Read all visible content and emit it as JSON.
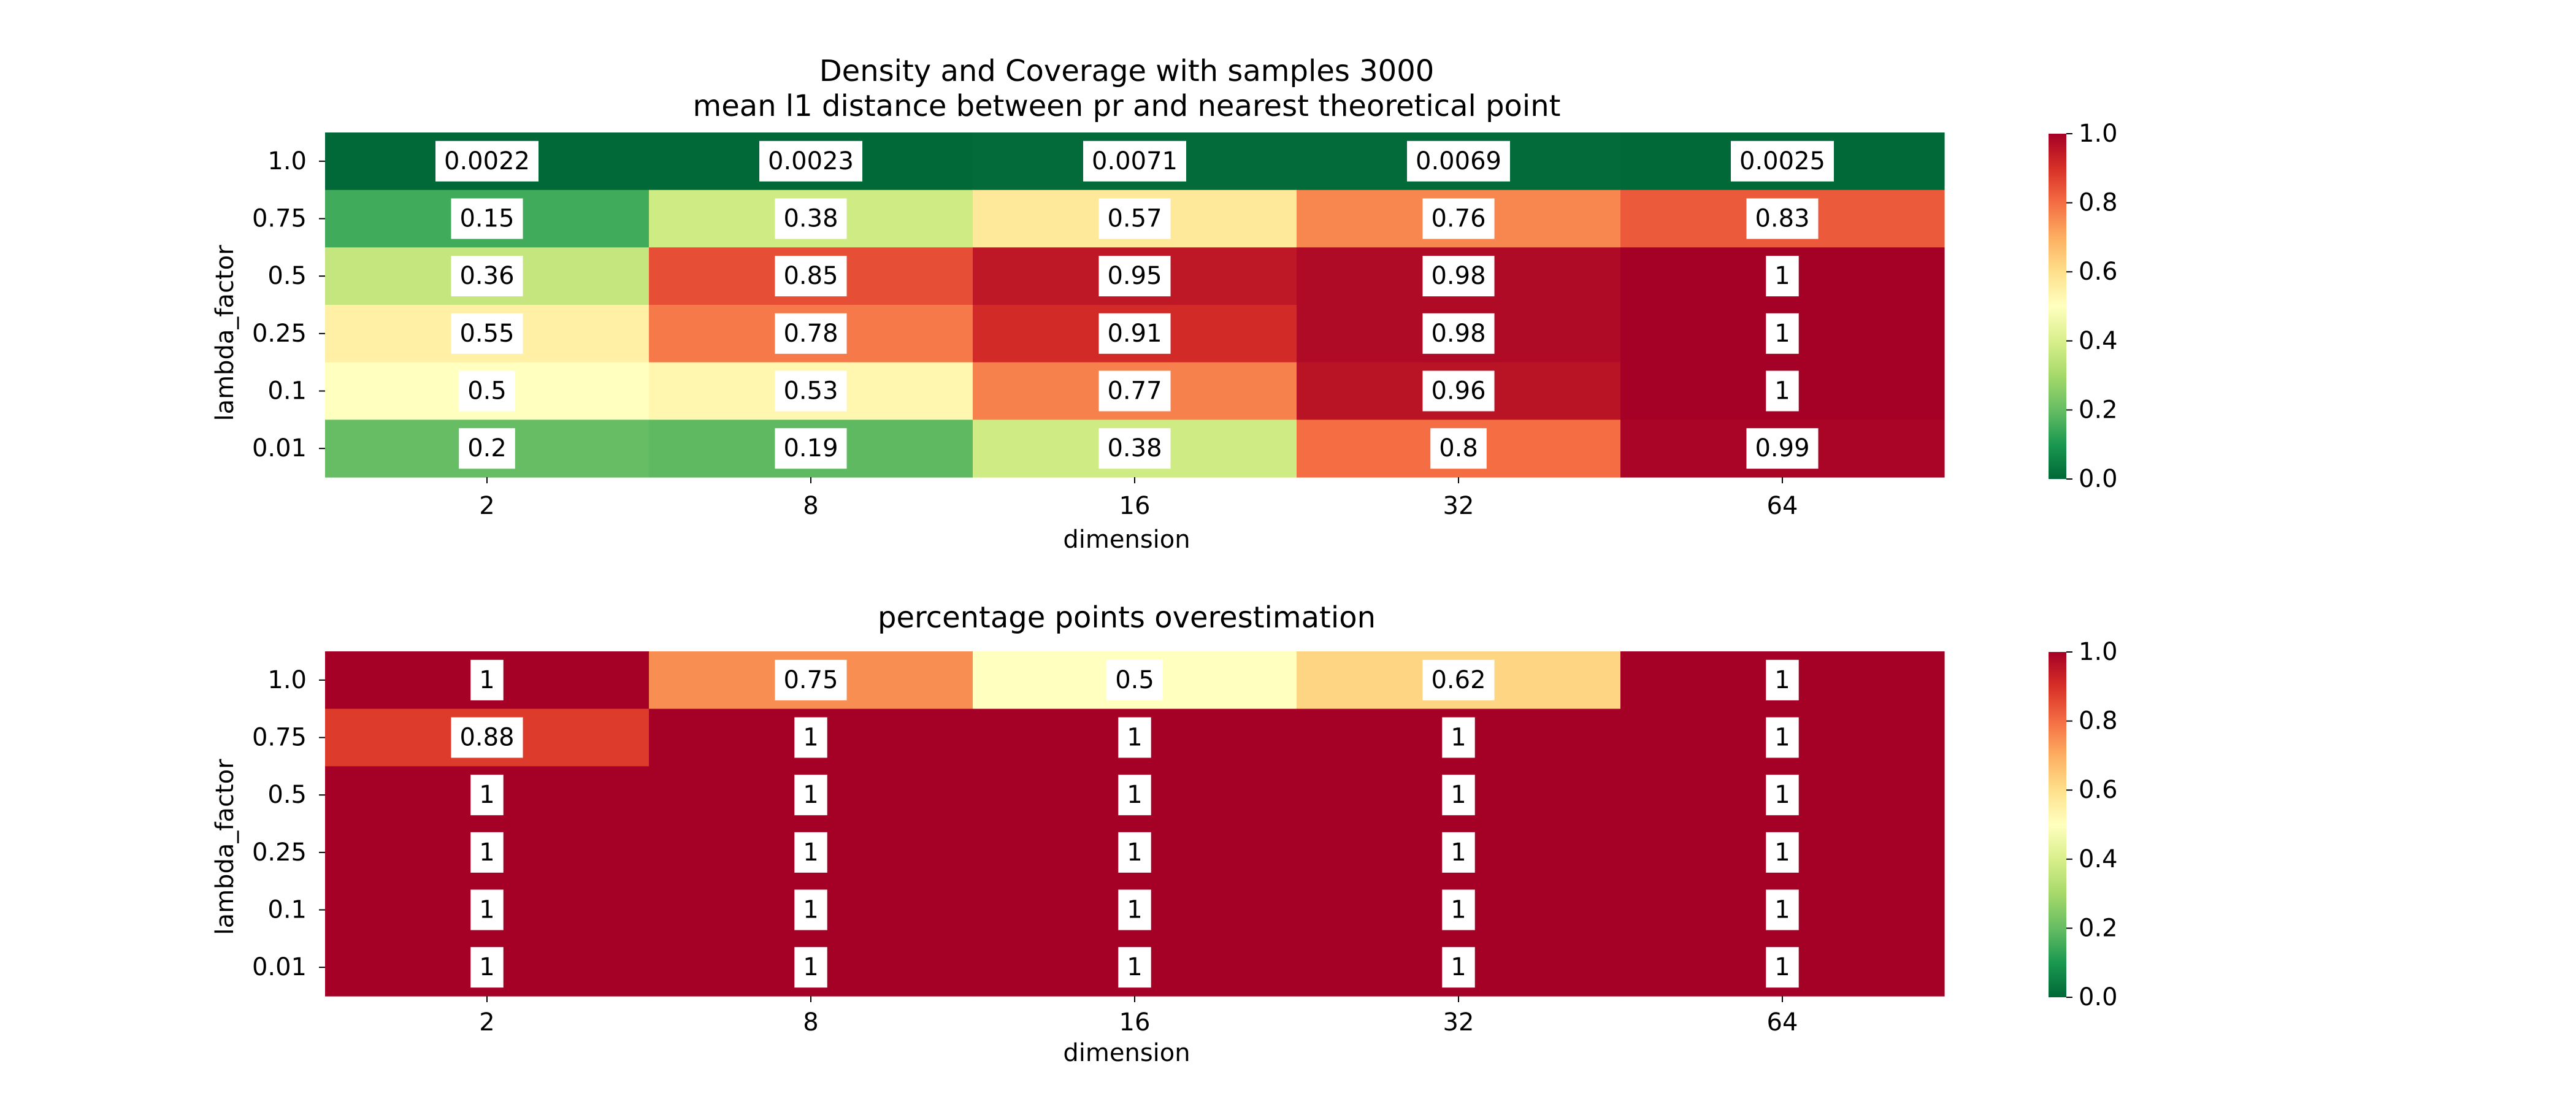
{
  "chart_data": [
    {
      "type": "heatmap",
      "title": "Density and Coverage with samples 3000",
      "subtitle": "mean l1 distance between pr and nearest theoretical point",
      "xlabel": "dimension",
      "ylabel": "lambda_factor",
      "x": [
        "2",
        "8",
        "16",
        "32",
        "64"
      ],
      "y": [
        "1.0",
        "0.75",
        "0.5",
        "0.25",
        "0.1",
        "0.01"
      ],
      "values": [
        [
          "0.0022",
          "0.0023",
          "0.0071",
          "0.0069",
          "0.0025"
        ],
        [
          "0.15",
          "0.38",
          "0.57",
          "0.76",
          "0.83"
        ],
        [
          "0.36",
          "0.85",
          "0.95",
          "0.98",
          "1"
        ],
        [
          "0.55",
          "0.78",
          "0.91",
          "0.98",
          "1"
        ],
        [
          "0.5",
          "0.53",
          "0.77",
          "0.96",
          "1"
        ],
        [
          "0.2",
          "0.19",
          "0.38",
          "0.8",
          "0.99"
        ]
      ],
      "colorbar": {
        "range": [
          0.0,
          1.0
        ],
        "ticks": [
          "0.0",
          "0.2",
          "0.4",
          "0.6",
          "0.8",
          "1.0"
        ],
        "colormap": "RdYlGn_r"
      }
    },
    {
      "type": "heatmap",
      "title": "percentage points overestimation",
      "xlabel": "dimension",
      "ylabel": "lambda_factor",
      "x": [
        "2",
        "8",
        "16",
        "32",
        "64"
      ],
      "y": [
        "1.0",
        "0.75",
        "0.5",
        "0.25",
        "0.1",
        "0.01"
      ],
      "values": [
        [
          "1",
          "0.75",
          "0.5",
          "0.62",
          "1"
        ],
        [
          "0.88",
          "1",
          "1",
          "1",
          "1"
        ],
        [
          "1",
          "1",
          "1",
          "1",
          "1"
        ],
        [
          "1",
          "1",
          "1",
          "1",
          "1"
        ],
        [
          "1",
          "1",
          "1",
          "1",
          "1"
        ],
        [
          "1",
          "1",
          "1",
          "1",
          "1"
        ]
      ],
      "colorbar": {
        "range": [
          0.0,
          1.0
        ],
        "ticks": [
          "0.0",
          "0.2",
          "0.4",
          "0.6",
          "0.8",
          "1.0"
        ],
        "colormap": "RdYlGn_r"
      }
    }
  ]
}
